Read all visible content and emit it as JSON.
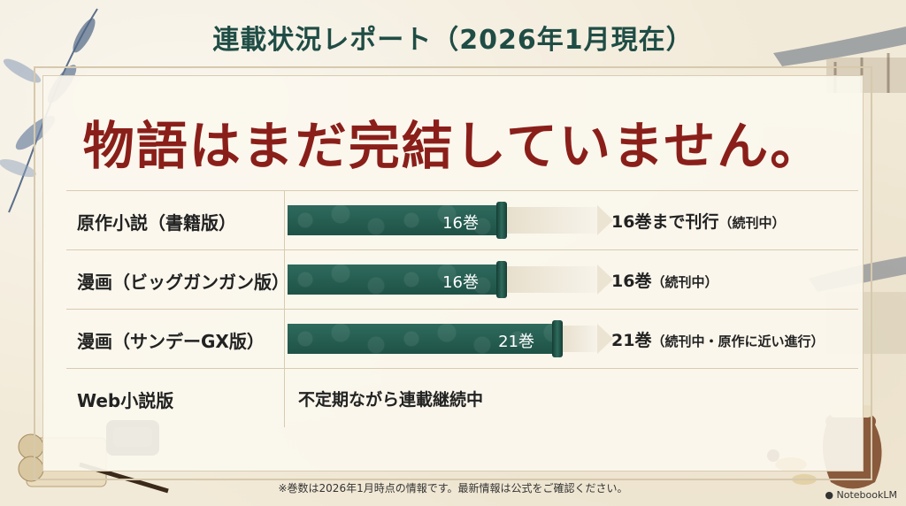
{
  "title": "連載状況レポート（2026年1月現在）",
  "headline": "物語はまだ完結していません。",
  "rows": [
    {
      "label": "原作小説（書籍版）",
      "bar_value": "16巻",
      "progress": 0.68,
      "status": "16巻まで刊行",
      "status_note": "（続刊中）"
    },
    {
      "label": "漫画（ビッグガンガン版）",
      "bar_value": "16巻",
      "progress": 0.68,
      "status": "16巻",
      "status_note": "（続刊中）"
    },
    {
      "label": "漫画（サンデーGX版）",
      "bar_value": "21巻",
      "progress": 0.86,
      "status": "21巻",
      "status_note": "（続刊中・原作に近い進行）"
    },
    {
      "label": "Web小説版",
      "plain": "不定期ながら連載継続中"
    }
  ],
  "footnote": "※巻数は2026年1月時点の情報です。最新情報は公式をご確認ください。",
  "brand": "NotebookLM",
  "colors": {
    "title": "#1f4d45",
    "headline": "#8a1f1a",
    "bar": "#1f5247"
  }
}
